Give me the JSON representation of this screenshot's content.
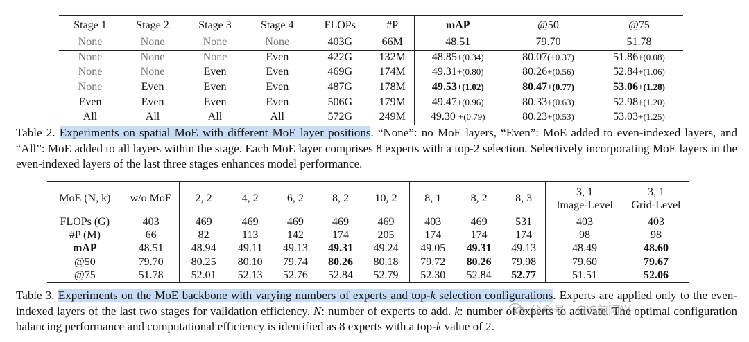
{
  "table2": {
    "headers": [
      "Stage 1",
      "Stage 2",
      "Stage 3",
      "Stage 4",
      "FLOPs",
      "#P",
      "mAP",
      "@50",
      "@75"
    ],
    "rows": [
      {
        "stages": [
          "None",
          "None",
          "None",
          "None"
        ],
        "flops": "403G",
        "params": "66M",
        "map": "48.51",
        "ap50": "79.70",
        "ap75": "51.78"
      },
      {
        "stages": [
          "None",
          "None",
          "None",
          "Even"
        ],
        "flops": "422G",
        "params": "132M",
        "map": "48.85",
        "map_gain": "+(0.34)",
        "ap50": "80.07",
        "ap50_gain": "(+0.37)",
        "ap75": "51.86",
        "ap75_gain": "+(0.08)"
      },
      {
        "stages": [
          "None",
          "None",
          "Even",
          "Even"
        ],
        "flops": "469G",
        "params": "174M",
        "map": "49.31",
        "map_gain": "+(0.80)",
        "ap50": "80.26",
        "ap50_gain": "+(0.56)",
        "ap75": "52.84",
        "ap75_gain": "+(1.06)"
      },
      {
        "stages": [
          "None",
          "Even",
          "Even",
          "Even"
        ],
        "flops": "487G",
        "params": "178M",
        "map": "49.53",
        "map_gain": "+(1.02)",
        "ap50": "80.47",
        "ap50_gain": "+(0.77)",
        "ap75": "53.06",
        "ap75_gain": "+(1.28)"
      },
      {
        "stages": [
          "Even",
          "Even",
          "Even",
          "Even"
        ],
        "flops": "506G",
        "params": "179M",
        "map": "49.47",
        "map_gain": "+(0.96)",
        "ap50": "80.33",
        "ap50_gain": "+(0.63)",
        "ap75": "52.98",
        "ap75_gain": "+(1.20)"
      },
      {
        "stages": [
          "All",
          "All",
          "All",
          "All"
        ],
        "flops": "572G",
        "params": "249M",
        "map": "49.30 ",
        "map_gain": "+(0.79)",
        "ap50": "80.23",
        "ap50_gain": "+(0.53)",
        "ap75": "53.03",
        "ap75_gain": "+(1.25)"
      }
    ],
    "caption": {
      "label": "Table 2.",
      "highlight": "Experiments on spatial MoE with different MoE layer positions",
      "rest": ". “None”: no MoE layers, “Even”: MoE added to even-indexed layers, and “All”: MoE added to all layers within the stage. Each MoE layer comprises 8 experts with a top-2 selection. Selectively incorporating MoE layers in the even-indexed layers of the last three stages enhances model performance."
    }
  },
  "table3": {
    "corner_label": "MoE (N, k)",
    "baseline_label": "w/o MoE",
    "col_group1": [
      "2, 2",
      "4, 2",
      "6, 2",
      "8, 2",
      "10, 2"
    ],
    "col_group2": [
      "8, 1",
      "8, 2",
      "8, 3"
    ],
    "col_group3": [
      {
        "line1": "3, 1",
        "line2": "Image-Level"
      },
      {
        "line1": "3, 1",
        "line2": "Grid-Level"
      }
    ],
    "rows": [
      {
        "label": "FLOPs (G)",
        "values": [
          "403",
          "469",
          "469",
          "469",
          "469",
          "469",
          "403",
          "469",
          "531",
          "403",
          "403"
        ]
      },
      {
        "label": "#P (M)",
        "values": [
          "66",
          "82",
          "113",
          "142",
          "174",
          "205",
          "174",
          "174",
          "174",
          "98",
          "98"
        ]
      },
      {
        "label": "mAP",
        "values": [
          "48.51",
          "48.94",
          "49.11",
          "49.13",
          "49.31",
          "49.24",
          "49.05",
          "49.31",
          "49.13",
          "48.49",
          "48.60"
        ]
      },
      {
        "label": "@50",
        "values": [
          "79.70",
          "80.25",
          "80.10",
          "79.74",
          "80.26",
          "80.18",
          "79.72",
          "80.26",
          "79.98",
          "79.60",
          "79.67"
        ]
      },
      {
        "label": "@75",
        "values": [
          "51.78",
          "52.01",
          "52.13",
          "52.76",
          "52.84",
          "52.79",
          "52.30",
          "52.84",
          "52.77",
          "51.51",
          "52.06"
        ]
      }
    ],
    "caption": {
      "label": "Table 3.",
      "highlight_a": "Experiments on the MoE backbone with varying numbers of experts and top-",
      "k": "k",
      "highlight_b": " selection configurations",
      "after_highlight": ". Experts are applied only to the even-indexed layers of the last two stages for validation efficiency. ",
      "n_var": "N",
      "n_desc": ": number of experts to add. ",
      "k_var": "k",
      "k_desc": ": number of experts to activate.",
      "last_a": " The optimal configuration balancing performance and computational efficiency is identified as 8 experts with a top-",
      "k2": "k",
      "last_b": " value of 2."
    }
  },
  "watermark": {
    "text": "公众号 · GIS前阿兴"
  },
  "colors": {
    "highlight": "#c9dcf5",
    "text": "#111111",
    "muted": "#777777"
  }
}
